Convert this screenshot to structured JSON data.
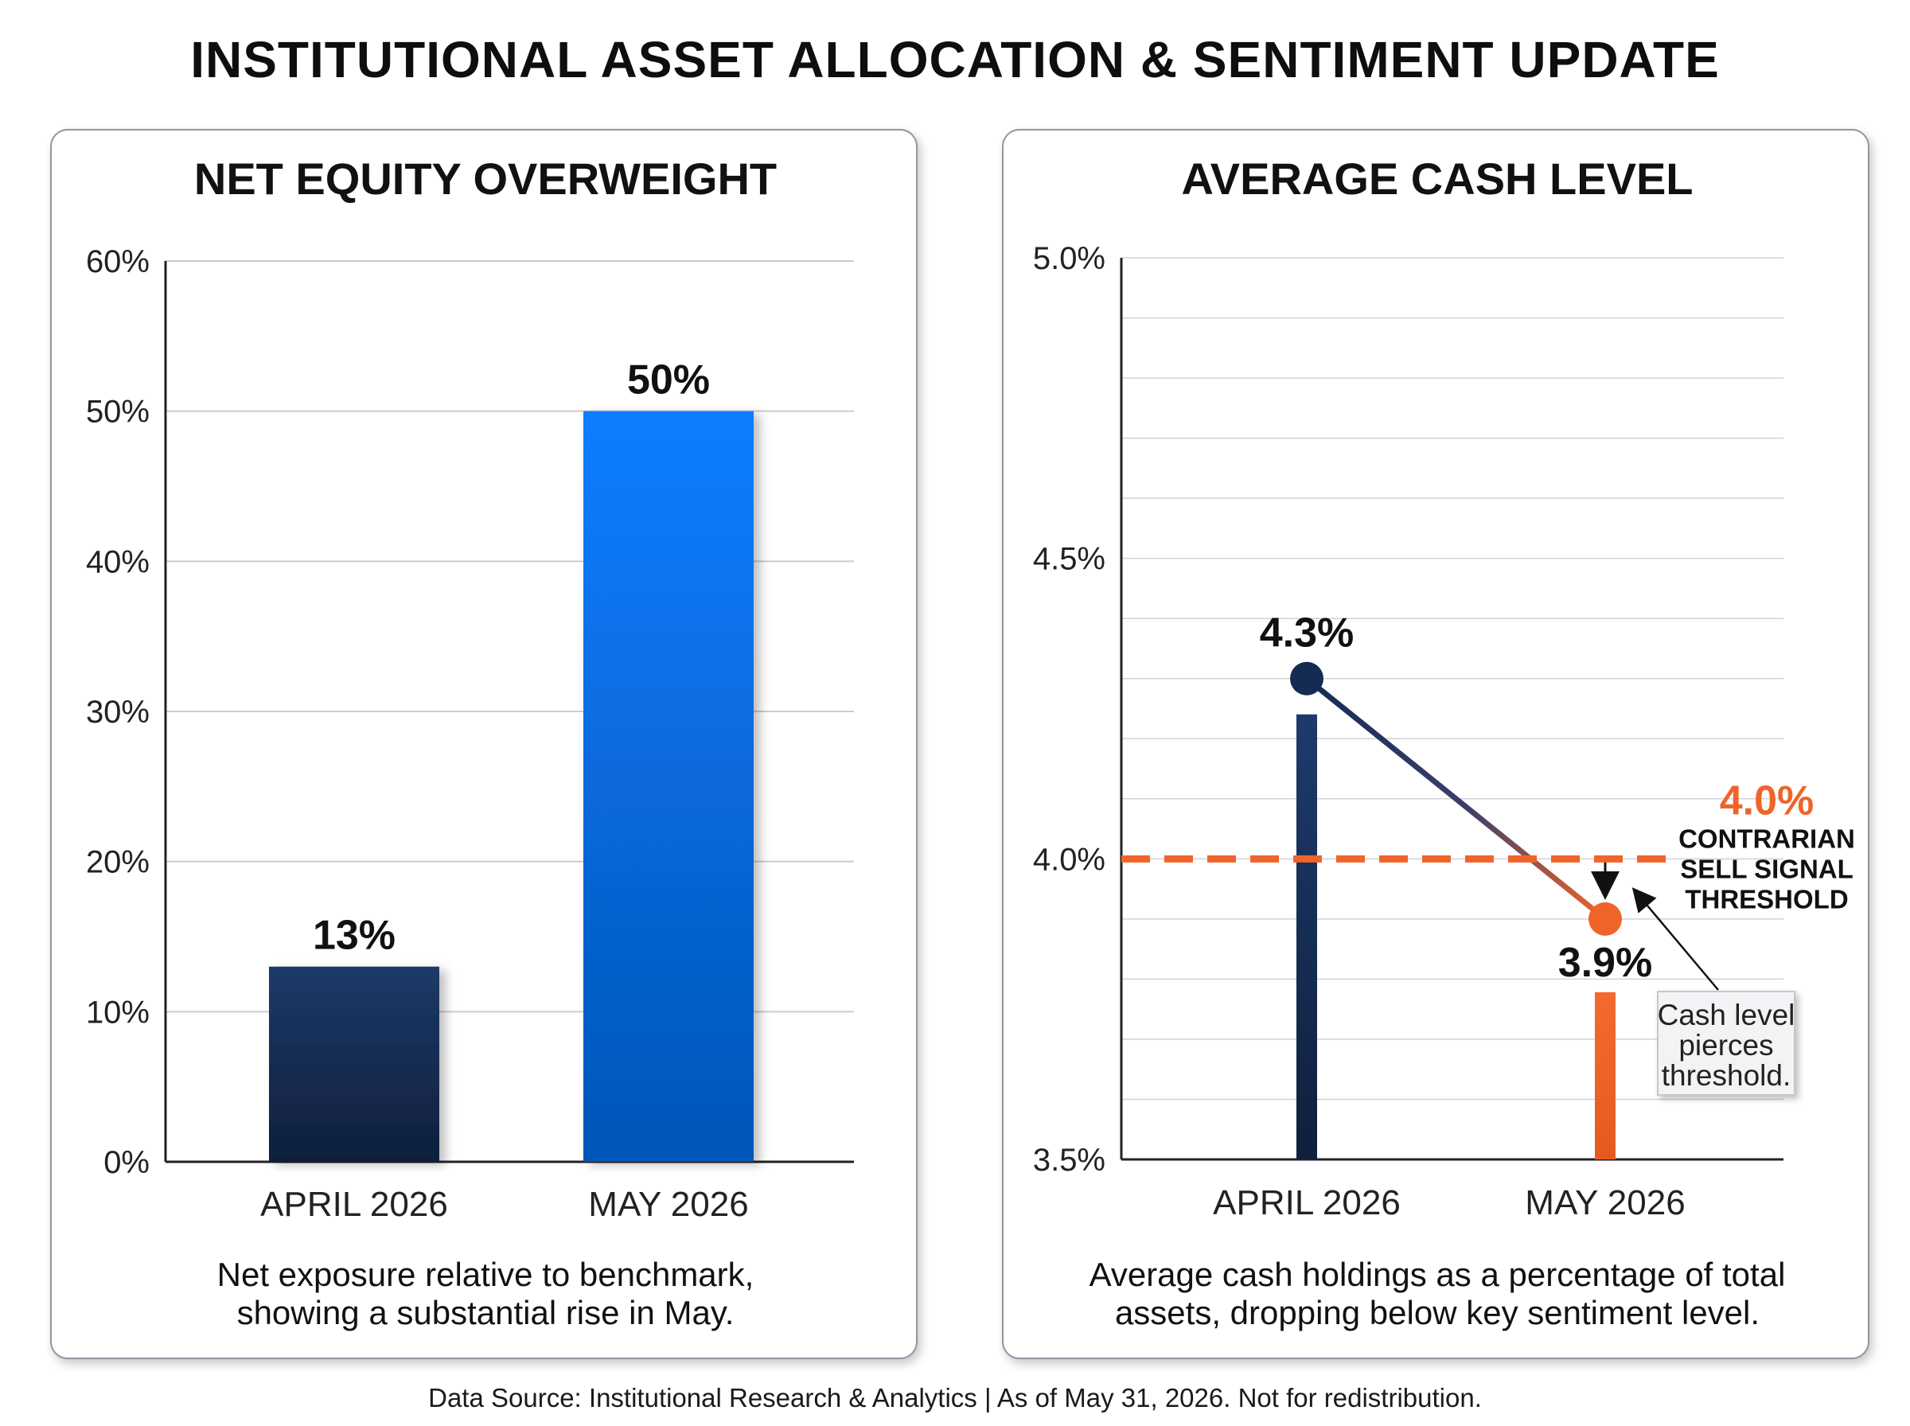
{
  "title": "INSTITUTIONAL ASSET ALLOCATION & SENTIMENT UPDATE",
  "footer": "Data Source: Institutional Research & Analytics | As of May 31, 2026. Not for redistribution.",
  "colors": {
    "april_bar": "#1b355f",
    "may_bar": "#0b7af8",
    "april_line": "#142c52",
    "may_point": "#f0642a",
    "threshold": "#f0642a"
  },
  "chart_data": [
    {
      "type": "bar",
      "title": "NET EQUITY OVERWEIGHT",
      "categories": [
        "APRIL 2026",
        "MAY 2026"
      ],
      "values": [
        13,
        50
      ],
      "data_labels": [
        "13%",
        "50%"
      ],
      "ylim": [
        0,
        60
      ],
      "yticks": [
        "0%",
        "10%",
        "20%",
        "30%",
        "40%",
        "50%",
        "60%"
      ],
      "grid": true,
      "caption": [
        "Net exposure relative to benchmark,",
        "showing a substantial rise in May."
      ]
    },
    {
      "type": "line",
      "title": "AVERAGE CASH LEVEL",
      "categories": [
        "APRIL 2026",
        "MAY 2026"
      ],
      "values": [
        4.3,
        3.9
      ],
      "data_labels": [
        "4.3%",
        "3.9%"
      ],
      "ylim": [
        3.5,
        5.0
      ],
      "yticks": [
        "3.5%",
        "4.0%",
        "4.5%",
        "5.0%"
      ],
      "grid": true,
      "threshold": {
        "value": 4.0,
        "value_label": "4.0%",
        "label_lines": [
          "CONTRARIAN",
          "SELL SIGNAL",
          "THRESHOLD"
        ]
      },
      "annotation": [
        "Cash level",
        "pierces",
        "threshold."
      ],
      "caption": [
        "Average cash holdings as a percentage of total",
        "assets, dropping below key sentiment level."
      ]
    }
  ]
}
